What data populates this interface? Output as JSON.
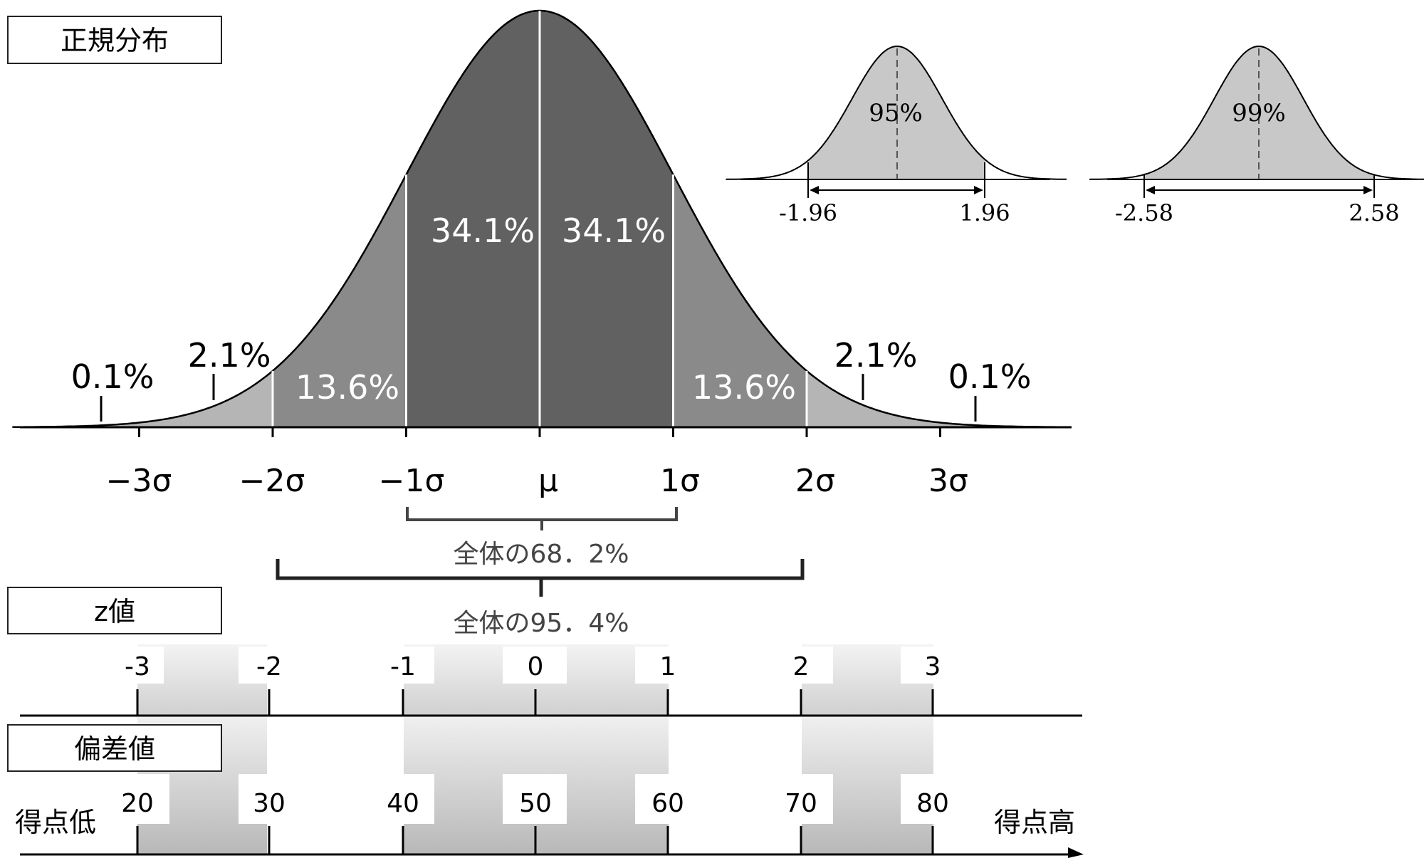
{
  "labels": {
    "normal_box": "正規分布",
    "z_box": "z値",
    "dev_box": "偏差値",
    "low_score": "得点低",
    "high_score": "得点高",
    "bracket1": "全体の68．2%",
    "bracket2": "全体の95．4%"
  },
  "percents": {
    "center_left": "34.1%",
    "center_right": "34.1%",
    "mid_left": "13.6%",
    "mid_right": "13.6%",
    "outer_left": "2.1%",
    "outer_right": "2.1%",
    "tail_left": "0.1%",
    "tail_right": "0.1%"
  },
  "sigma_ticks": [
    "−3σ",
    "−2σ",
    "−1σ",
    "μ",
    "1σ",
    "2σ",
    "3σ"
  ],
  "z_ticks": [
    "-3",
    "-2",
    "-1",
    "0",
    "1",
    "2",
    "3"
  ],
  "dev_ticks": [
    "20",
    "30",
    "40",
    "50",
    "60",
    "70",
    "80"
  ],
  "inset95": {
    "percent": "95%",
    "left": "-1.96",
    "right": "1.96"
  },
  "inset99": {
    "percent": "99%",
    "left": "-2.58",
    "right": "2.58"
  },
  "colors": {
    "center": "#616161",
    "middle": "#8a8a8a",
    "outer": "#b5b5b5",
    "inset_fill": "#c8c8c8",
    "band_light": "#e8e8e8",
    "band_dark": "#bdbdbd"
  }
}
